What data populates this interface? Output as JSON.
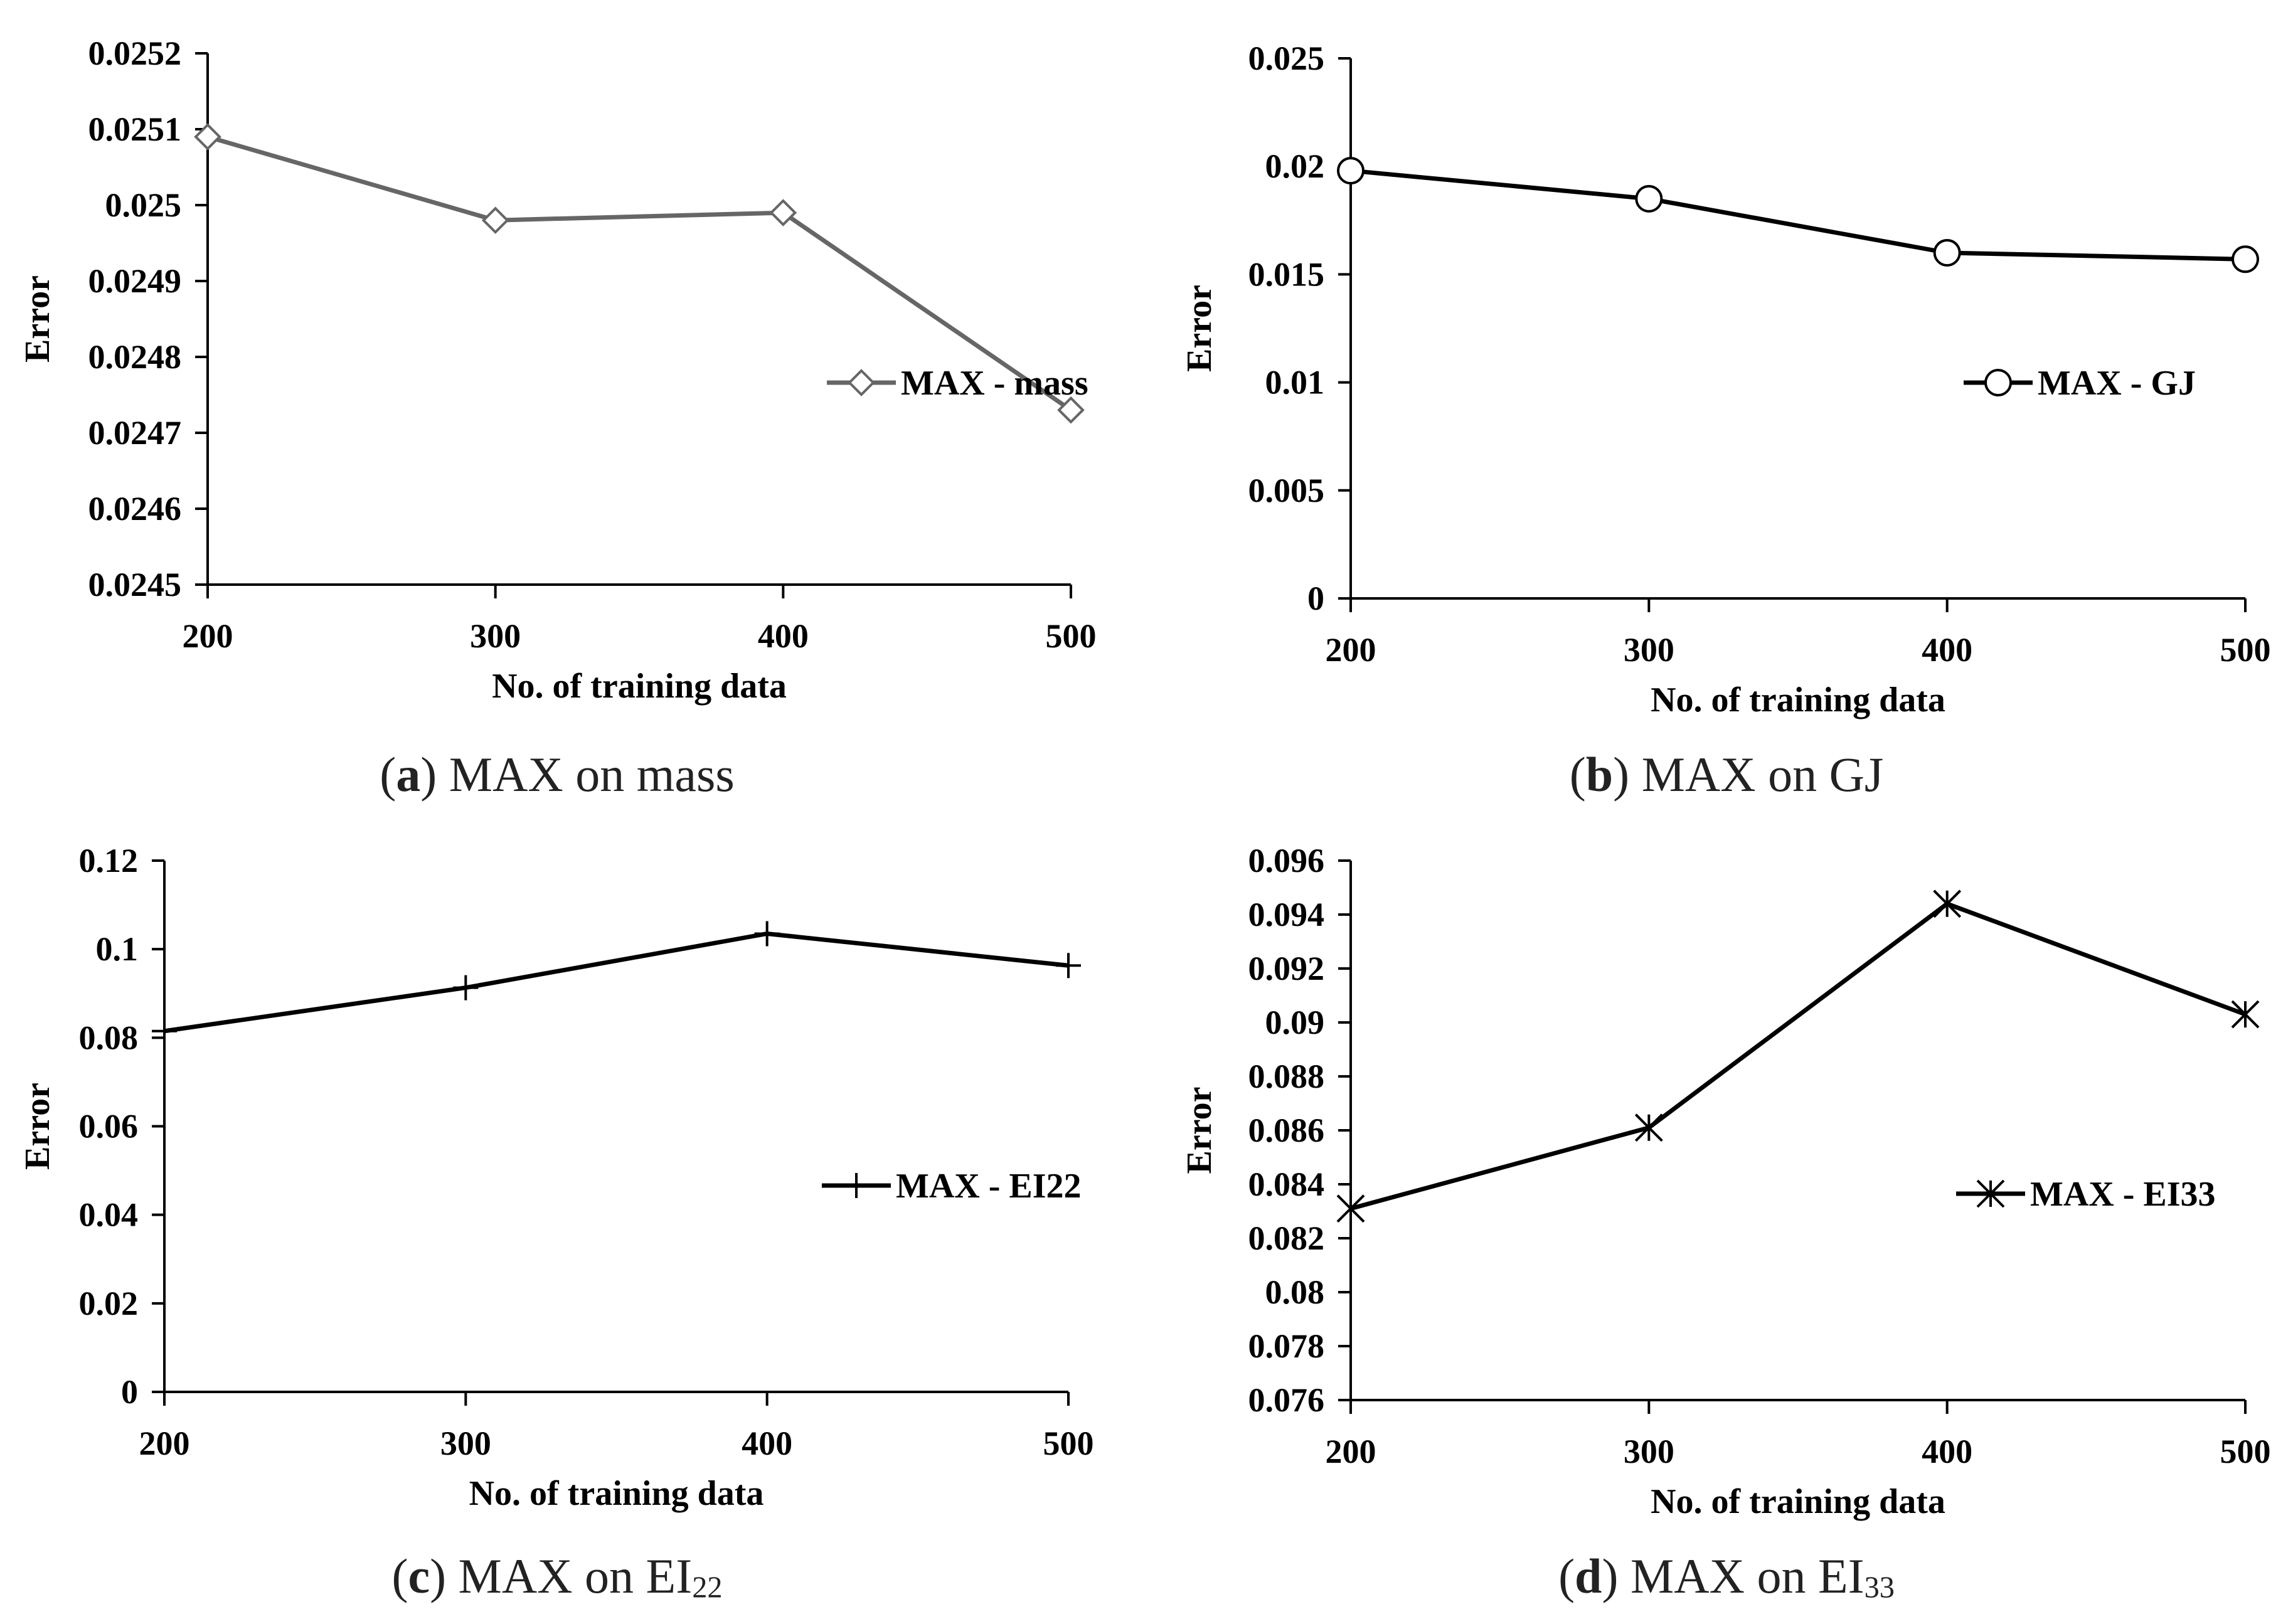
{
  "chart_data": [
    {
      "type": "line",
      "panel": "a",
      "caption_letter": "a",
      "caption_text": "MAX on mass",
      "caption_base": "",
      "caption_sub": "",
      "ylabel": "Error",
      "xlabel": "No. of training data",
      "x": [
        200,
        300,
        400,
        500
      ],
      "x_tick_labels": [
        "200",
        "300",
        "400",
        "500"
      ],
      "ylim": [
        0.0245,
        0.0252
      ],
      "y_ticks": [
        0.0245,
        0.0246,
        0.0247,
        0.0248,
        0.0249,
        0.025,
        0.0251,
        0.0252
      ],
      "y_tick_labels": [
        "0.0245",
        "0.0246",
        "0.0247",
        "0.0248",
        "0.0249",
        "0.025",
        "0.0251",
        "0.0252"
      ],
      "series": [
        {
          "name": "MAX - mass",
          "marker": "diamond",
          "color": "#666666",
          "values": [
            0.02509,
            0.02498,
            0.02499,
            0.02473
          ]
        }
      ],
      "legend_position": "right"
    },
    {
      "type": "line",
      "panel": "b",
      "caption_letter": "b",
      "caption_text": "MAX on GJ",
      "caption_base": "",
      "caption_sub": "",
      "ylabel": "Error",
      "xlabel": "No. of training data",
      "x": [
        200,
        300,
        400,
        500
      ],
      "x_tick_labels": [
        "200",
        "300",
        "400",
        "500"
      ],
      "ylim": [
        0,
        0.025
      ],
      "y_ticks": [
        0,
        0.005,
        0.01,
        0.015,
        0.02,
        0.025
      ],
      "y_tick_labels": [
        "0",
        "0.005",
        "0.01",
        "0.015",
        "0.02",
        "0.025"
      ],
      "series": [
        {
          "name": "MAX - GJ",
          "marker": "circle",
          "color": "#000000",
          "values": [
            0.0198,
            0.0185,
            0.016,
            0.0157
          ]
        }
      ],
      "legend_position": "right"
    },
    {
      "type": "line",
      "panel": "c",
      "caption_letter": "c",
      "caption_text": "",
      "caption_base": "MAX on EI",
      "caption_sub": "22",
      "ylabel": "Error",
      "xlabel": "No. of training data",
      "x": [
        200,
        300,
        400,
        500
      ],
      "x_tick_labels": [
        "200",
        "300",
        "400",
        "500"
      ],
      "ylim": [
        0,
        0.12
      ],
      "y_ticks": [
        0,
        0.02,
        0.04,
        0.06,
        0.08,
        0.1,
        0.12
      ],
      "y_tick_labels": [
        "0",
        "0.02",
        "0.04",
        "0.06",
        "0.08",
        "0.1",
        "0.12"
      ],
      "series": [
        {
          "name": "MAX - EI22",
          "marker": "plus",
          "color": "#000000",
          "values": [
            0.0815,
            0.0913,
            0.1035,
            0.0963
          ]
        }
      ],
      "legend_position": "right"
    },
    {
      "type": "line",
      "panel": "d",
      "caption_letter": "d",
      "caption_text": "",
      "caption_base": "MAX on EI",
      "caption_sub": "33",
      "ylabel": "Error",
      "xlabel": "No. of training data",
      "x": [
        200,
        300,
        400,
        500
      ],
      "x_tick_labels": [
        "200",
        "300",
        "400",
        "500"
      ],
      "ylim": [
        0.076,
        0.096
      ],
      "y_ticks": [
        0.076,
        0.078,
        0.08,
        0.082,
        0.084,
        0.086,
        0.088,
        0.09,
        0.092,
        0.094,
        0.096
      ],
      "y_tick_labels": [
        "0.076",
        "0.078",
        "0.08",
        "0.082",
        "0.084",
        "0.086",
        "0.088",
        "0.09",
        "0.092",
        "0.094",
        "0.096"
      ],
      "series": [
        {
          "name": "MAX - EI33",
          "marker": "star",
          "color": "#000000",
          "values": [
            0.0831,
            0.0861,
            0.0944,
            0.0903
          ]
        }
      ],
      "legend_position": "right"
    }
  ]
}
